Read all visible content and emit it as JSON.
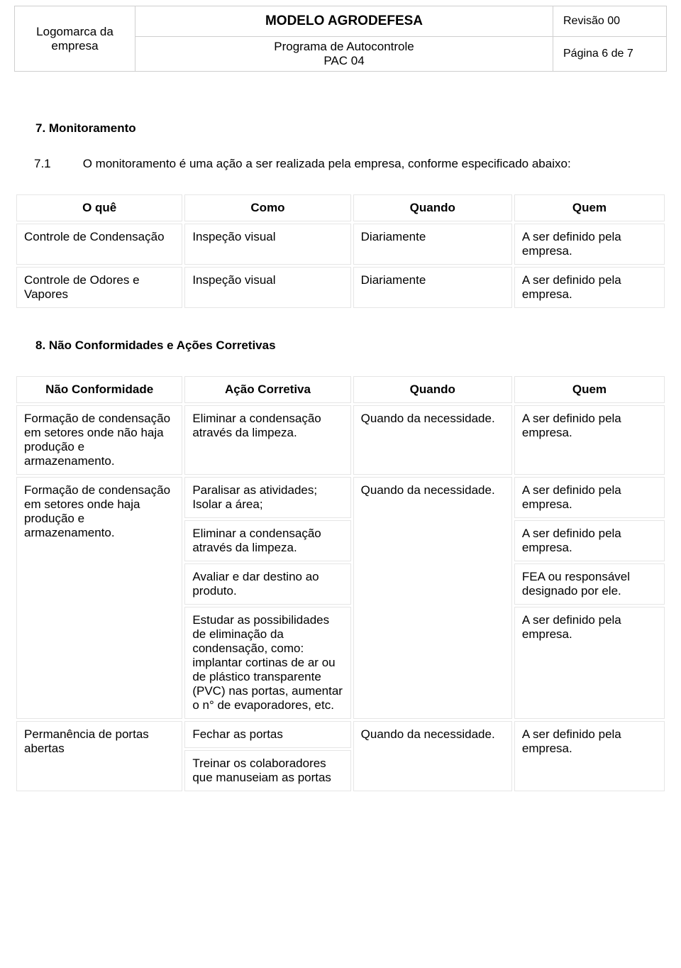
{
  "header": {
    "logo_line1": "Logomarca da",
    "logo_line2": "empresa",
    "title": "MODELO AGRODEFESA",
    "subtitle_line1": "Programa de Autocontrole",
    "subtitle_line2": "PAC 04",
    "revision": "Revisão 00",
    "page": "Página 6 de 7"
  },
  "section7": {
    "heading": "7.  Monitoramento",
    "sub_num": "7.1",
    "sub_text": "O monitoramento é uma ação a ser realizada pela empresa, conforme especificado abaixo:"
  },
  "monitor_table": {
    "headers": {
      "c1": "O quê",
      "c2": "Como",
      "c3": "Quando",
      "c4": "Quem"
    },
    "rows": [
      {
        "c1": "Controle de Condensação",
        "c2": "Inspeção visual",
        "c3": "Diariamente",
        "c4": "A ser definido pela empresa."
      },
      {
        "c1": "Controle de Odores e Vapores",
        "c2": "Inspeção visual",
        "c3": "Diariamente",
        "c4": "A ser definido pela empresa."
      }
    ]
  },
  "section8": {
    "heading": "8.   Não Conformidades e Ações Corretivas"
  },
  "nc_table": {
    "headers": {
      "c1": "Não Conformidade",
      "c2": "Ação Corretiva",
      "c3": "Quando",
      "c4": "Quem"
    },
    "row1": {
      "c1": "Formação de condensação em setores onde não haja produção e armazenamento.",
      "c2": "Eliminar a condensação através da limpeza.",
      "c3": "Quando da necessidade.",
      "c4": "A ser definido pela empresa."
    },
    "row2": {
      "c1": "Formação de condensação em setores onde haja produção e armazenamento.",
      "c2a": "Paralisar as atividades; Isolar a área;",
      "c2b": "Eliminar a condensação através da limpeza.",
      "c2c": "Avaliar e dar destino ao produto.",
      "c2d": "Estudar as possibilidades de eliminação da condensação, como: implantar cortinas de ar ou de plástico transparente (PVC) nas portas, aumentar o n° de evaporadores, etc.",
      "c3": "Quando da necessidade.",
      "c4a": "A ser definido pela empresa.",
      "c4b": "A ser definido pela empresa.",
      "c4c": "FEA ou responsável designado por ele.",
      "c4d": "A ser definido pela empresa."
    },
    "row3": {
      "c1": "Permanência de portas abertas",
      "c2a": "Fechar as portas",
      "c2b": "Treinar os colaboradores que manuseiam as portas",
      "c3": "Quando da necessidade.",
      "c4": "A ser definido pela empresa."
    }
  }
}
